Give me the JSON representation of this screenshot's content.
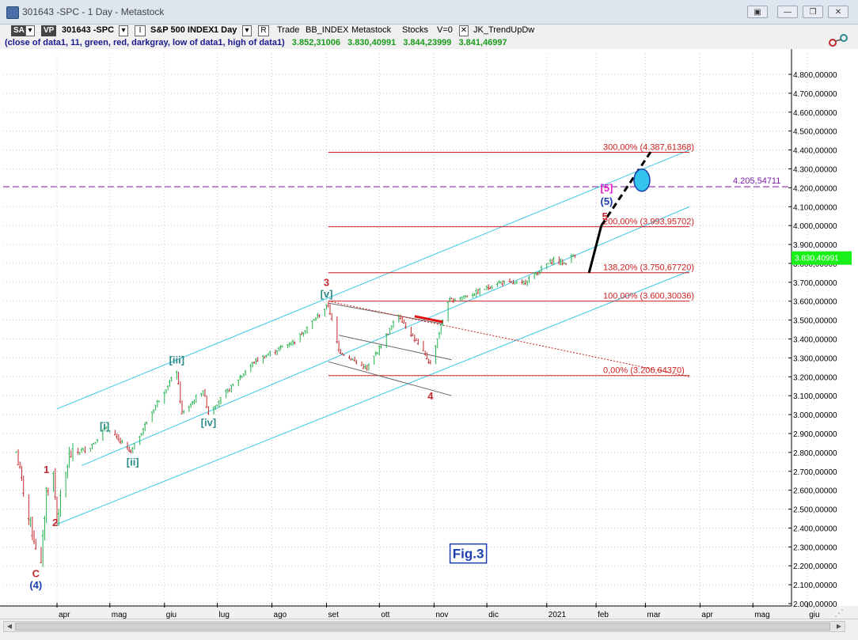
{
  "window": {
    "title": "301643 -SPC - 1 Day - Metastock",
    "buttons": [
      "▣",
      "—",
      "❐",
      "✕"
    ]
  },
  "toolbar": {
    "sa_label": "SA",
    "vp_label": "VP",
    "symbol": "301643 -SPC",
    "i_label": "I",
    "security_name": "S&P 500 INDEX",
    "period": "1 Day",
    "r_label": "R",
    "trade_label": "Trade",
    "index_label": "BB_INDEX",
    "source_label": "Metastock",
    "stocks_label": "Stocks",
    "v_label": "V=0",
    "expert_check": "✕",
    "expert_label": "JK_TrendUpDw"
  },
  "indicator": {
    "params": "(close of data1,  11,  green,  red,  darkgray,  low of data1,  high of data1)",
    "values": [
      "3.852,31006",
      "3.830,40991",
      "3.844,23999",
      "3.841,46997"
    ]
  },
  "colors": {
    "up_bar": "#22b14c",
    "down_bar": "#c0282d",
    "channel": "#3cc8e6",
    "fib_line": "#cc1f1f",
    "wave_red": "#c0282d",
    "wave_blue": "#1b3fae",
    "wave_teal": "#2e8b8b",
    "wave_magenta": "#e020c8",
    "target_fill": "#33c4ee",
    "last_price_bg": "#19ef19",
    "fig_label": "#1b3fae"
  },
  "chart_data": {
    "type": "ohlc",
    "y_axis": {
      "min": 2000,
      "max": 4800,
      "ticks": [
        "4.800,00000",
        "4.700,00000",
        "4.600,00000",
        "4.500,00000",
        "4.400,00000",
        "4.300,00000",
        "4.200,00000",
        "4.100,00000",
        "4.000,00000",
        "3.900,00000",
        "3.800,00000",
        "3.700,00000",
        "3.600,00000",
        "3.500,00000",
        "3.400,00000",
        "3.300,00000",
        "3.200,00000",
        "3.100,00000",
        "3.000,00000",
        "2.900,00000",
        "2.800,00000",
        "2.700,00000",
        "2.600,00000",
        "2.500,00000",
        "2.400,00000",
        "2.300,00000",
        "2.200,00000",
        "2.100,00000",
        "2.000,00000"
      ],
      "tick_values": [
        4800,
        4700,
        4600,
        4500,
        4400,
        4300,
        4200,
        4100,
        4000,
        3900,
        3800,
        3700,
        3600,
        3500,
        3400,
        3300,
        3200,
        3100,
        3000,
        2900,
        2800,
        2700,
        2600,
        2500,
        2400,
        2300,
        2200,
        2100,
        2000
      ]
    },
    "x_axis": {
      "ticks": [
        "apr",
        "mag",
        "giu",
        "lug",
        "ago",
        "set",
        "ott",
        "nov",
        "dic",
        "2021",
        "feb",
        "mar",
        "apr",
        "mag",
        "giu"
      ],
      "tick_dates": [
        "2020-04-01",
        "2020-05-01",
        "2020-06-01",
        "2020-07-01",
        "2020-08-01",
        "2020-09-01",
        "2020-10-01",
        "2020-11-01",
        "2020-12-01",
        "2021-01-04",
        "2021-02-01",
        "2021-03-01",
        "2021-04-01",
        "2021-05-01",
        "2021-06-01"
      ]
    },
    "price_path": [
      {
        "d": "2020-03-09",
        "p": 2800
      },
      {
        "d": "2020-03-16",
        "p": 2450
      },
      {
        "d": "2020-03-23",
        "p": 2200
      },
      {
        "d": "2020-03-26",
        "p": 2600
      },
      {
        "d": "2020-03-30",
        "p": 2680
      },
      {
        "d": "2020-04-01",
        "p": 2450
      },
      {
        "d": "2020-04-08",
        "p": 2780
      },
      {
        "d": "2020-04-20",
        "p": 2830
      },
      {
        "d": "2020-04-29",
        "p": 2930
      },
      {
        "d": "2020-05-13",
        "p": 2800
      },
      {
        "d": "2020-05-27",
        "p": 3050
      },
      {
        "d": "2020-06-08",
        "p": 3230
      },
      {
        "d": "2020-06-11",
        "p": 3000
      },
      {
        "d": "2020-06-23",
        "p": 3130
      },
      {
        "d": "2020-06-26",
        "p": 3010
      },
      {
        "d": "2020-07-22",
        "p": 3280
      },
      {
        "d": "2020-08-14",
        "p": 3390
      },
      {
        "d": "2020-09-02",
        "p": 3580
      },
      {
        "d": "2020-09-08",
        "p": 3340
      },
      {
        "d": "2020-09-24",
        "p": 3240
      },
      {
        "d": "2020-10-12",
        "p": 3530
      },
      {
        "d": "2020-10-30",
        "p": 3270
      },
      {
        "d": "2020-11-09",
        "p": 3600
      },
      {
        "d": "2020-11-24",
        "p": 3640
      },
      {
        "d": "2020-12-08",
        "p": 3700
      },
      {
        "d": "2020-12-21",
        "p": 3690
      },
      {
        "d": "2021-01-08",
        "p": 3820
      },
      {
        "d": "2021-01-14",
        "p": 3800
      },
      {
        "d": "2021-01-20",
        "p": 3850
      }
    ],
    "last_price": "3.830,40991",
    "last_value": 3830.41,
    "fib_levels": [
      {
        "label": "300,00% (4.387,61368)",
        "value": 4387.61
      },
      {
        "label": "200,00% (3.993,95702)",
        "value": 3993.96
      },
      {
        "label": "138,20% (3.750,67720)",
        "value": 3750.68
      },
      {
        "label": "100,00% (3.600,30036)",
        "value": 3600.3
      },
      {
        "label": "0,00% (3.206,64370)",
        "value": 3206.64
      }
    ],
    "fib_start": "2020-09-02",
    "fib_label_date": "2021-02-05",
    "target_line": {
      "label": "4.205,54711",
      "value": 4205.55
    },
    "channel_lines": [
      {
        "from": {
          "d": "2020-04-01",
          "p": 3030
        },
        "to": {
          "d": "2021-03-26",
          "p": 4400
        }
      },
      {
        "from": {
          "d": "2020-04-15",
          "p": 2730
        },
        "to": {
          "d": "2021-03-26",
          "p": 4100
        }
      },
      {
        "from": {
          "d": "2020-04-01",
          "p": 2420
        },
        "to": {
          "d": "2021-03-26",
          "p": 3760
        }
      }
    ],
    "triangle_lines": [
      {
        "from": {
          "d": "2020-09-02",
          "p": 3590
        },
        "to": {
          "d": "2020-11-06",
          "p": 3480
        },
        "color": "#666666"
      },
      {
        "from": {
          "d": "2020-09-08",
          "p": 3420
        },
        "to": {
          "d": "2020-11-11",
          "p": 3290
        },
        "color": "#666666"
      },
      {
        "from": {
          "d": "2020-09-02",
          "p": 3280
        },
        "to": {
          "d": "2020-11-11",
          "p": 3100
        },
        "color": "#666666"
      }
    ],
    "dotted_line": {
      "from": {
        "d": "2020-09-02",
        "p": 3600
      },
      "to": {
        "d": "2021-03-26",
        "p": 3200
      }
    },
    "red_marker": {
      "from": {
        "d": "2020-10-21",
        "p": 3520
      },
      "to": {
        "d": "2020-11-06",
        "p": 3490
      }
    },
    "projection_solid": {
      "from": {
        "d": "2021-01-28",
        "p": 3750
      },
      "to": {
        "d": "2021-02-04",
        "p": 4000
      }
    },
    "projection_dashed": {
      "from": {
        "d": "2021-02-04",
        "p": 4000
      },
      "to": {
        "d": "2021-03-04",
        "p": 4390
      }
    },
    "target_ellipse": {
      "d": "2021-02-27",
      "p": 4240
    },
    "wave_labels": [
      {
        "text": "C",
        "d": "2020-03-20",
        "p": 2140,
        "color": "#c0282d"
      },
      {
        "text": "(4)",
        "d": "2020-03-20",
        "p": 2080,
        "color": "#1b3fae"
      },
      {
        "text": "1",
        "d": "2020-03-26",
        "p": 2690,
        "color": "#c0282d"
      },
      {
        "text": "2",
        "d": "2020-03-31",
        "p": 2410,
        "color": "#c0282d"
      },
      {
        "text": "[i]",
        "d": "2020-04-28",
        "p": 2920,
        "color": "#2e8b8b"
      },
      {
        "text": "[ii]",
        "d": "2020-05-14",
        "p": 2730,
        "color": "#2e8b8b"
      },
      {
        "text": "[iii]",
        "d": "2020-06-08",
        "p": 3270,
        "color": "#2e8b8b"
      },
      {
        "text": "[iv]",
        "d": "2020-06-26",
        "p": 2940,
        "color": "#2e8b8b"
      },
      {
        "text": "[v]",
        "d": "2020-09-01",
        "p": 3620,
        "color": "#2e8b8b"
      },
      {
        "text": "3",
        "d": "2020-09-01",
        "p": 3680,
        "color": "#c0282d"
      },
      {
        "text": "4",
        "d": "2020-10-30",
        "p": 3080,
        "color": "#c0282d"
      },
      {
        "text": "5",
        "d": "2021-02-06",
        "p": 4030,
        "color": "#c0282d"
      },
      {
        "text": "(5)",
        "d": "2021-02-07",
        "p": 4110,
        "color": "#1b3fae"
      },
      {
        "text": "[5]",
        "d": "2021-02-07",
        "p": 4180,
        "color": "#e020c8"
      }
    ],
    "fig_label": "Fig.3",
    "fig_date": "2020-11-20",
    "fig_value": 2240
  }
}
